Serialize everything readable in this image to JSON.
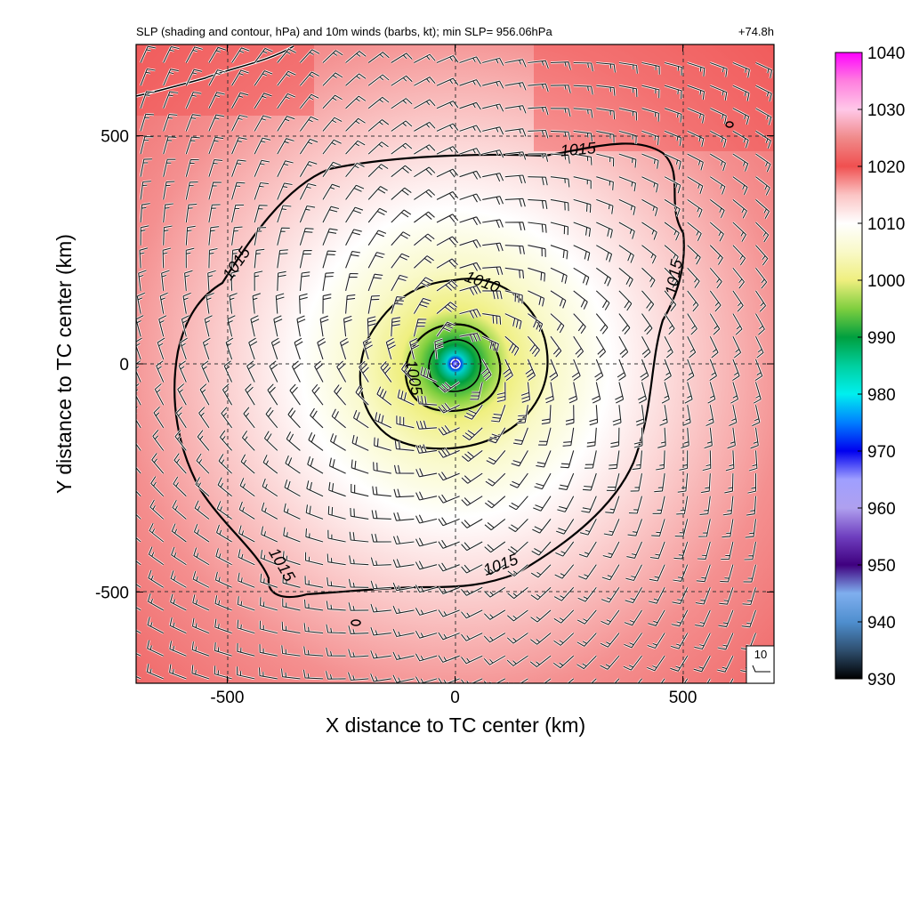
{
  "chart_data": {
    "type": "heatmap",
    "title_left": "SLP (shading and contour, hPa) and 10m winds (barbs, kt); min SLP= 956.06hPa",
    "title_right": "+74.8h",
    "xlabel": "X distance to TC center (km)",
    "ylabel": "Y distance to TC center (km)",
    "xlim": [
      -700,
      700
    ],
    "ylim": [
      -700,
      700
    ],
    "x_ticks": [
      -500,
      0,
      500
    ],
    "x_tick_labels": [
      "-500",
      "0",
      "500"
    ],
    "y_ticks": [
      -500,
      0,
      500
    ],
    "y_tick_labels": [
      "-500",
      "0",
      "500"
    ],
    "grid": "dashed at ±500 and 0",
    "min_slp_hpa": 956.06,
    "center": [
      0,
      0
    ],
    "colorbar": {
      "min": 930,
      "max": 1040,
      "ticks": [
        930,
        940,
        950,
        960,
        970,
        980,
        990,
        1000,
        1010,
        1020,
        1030,
        1040
      ],
      "tick_labels": [
        "930",
        "940",
        "950",
        "960",
        "970",
        "980",
        "990",
        "1000",
        "1010",
        "1020",
        "1030",
        "1040"
      ],
      "colors": [
        {
          "v": 930,
          "c": "#000000"
        },
        {
          "v": 935,
          "c": "#2f4f6f"
        },
        {
          "v": 940,
          "c": "#4f8fcf"
        },
        {
          "v": 945,
          "c": "#7fafef"
        },
        {
          "v": 950,
          "c": "#3f007f"
        },
        {
          "v": 955,
          "c": "#6f3fbf"
        },
        {
          "v": 960,
          "c": "#afa0ef"
        },
        {
          "v": 965,
          "c": "#9f9fff"
        },
        {
          "v": 970,
          "c": "#0000ef"
        },
        {
          "v": 975,
          "c": "#007fff"
        },
        {
          "v": 980,
          "c": "#00efef"
        },
        {
          "v": 985,
          "c": "#00cf9f"
        },
        {
          "v": 990,
          "c": "#009f3f"
        },
        {
          "v": 995,
          "c": "#7fcf3f"
        },
        {
          "v": 1000,
          "c": "#efef7f"
        },
        {
          "v": 1005,
          "c": "#f9f9c8"
        },
        {
          "v": 1010,
          "c": "#ffffff"
        },
        {
          "v": 1015,
          "c": "#fbc4c4"
        },
        {
          "v": 1020,
          "c": "#f05050"
        },
        {
          "v": 1025,
          "c": "#f08a8a"
        },
        {
          "v": 1030,
          "c": "#ffc8e8"
        },
        {
          "v": 1035,
          "c": "#ff7fdf"
        },
        {
          "v": 1040,
          "c": "#ff00ff"
        }
      ]
    },
    "contours": [
      {
        "level": 1005,
        "label": "1005",
        "label_pos": [
          -90,
          -30
        ]
      },
      {
        "level": 1010,
        "label": "1010",
        "label_pos": [
          60,
          180
        ]
      },
      {
        "level": 1015,
        "label": "1015",
        "label_pos": [
          270,
          470
        ],
        "extra_labels": [
          [
            -480,
            220
          ],
          [
            480,
            190
          ],
          [
            -380,
            -440
          ],
          [
            100,
            -440
          ]
        ]
      }
    ],
    "wind_barb_reference": {
      "label": "10"
    }
  }
}
